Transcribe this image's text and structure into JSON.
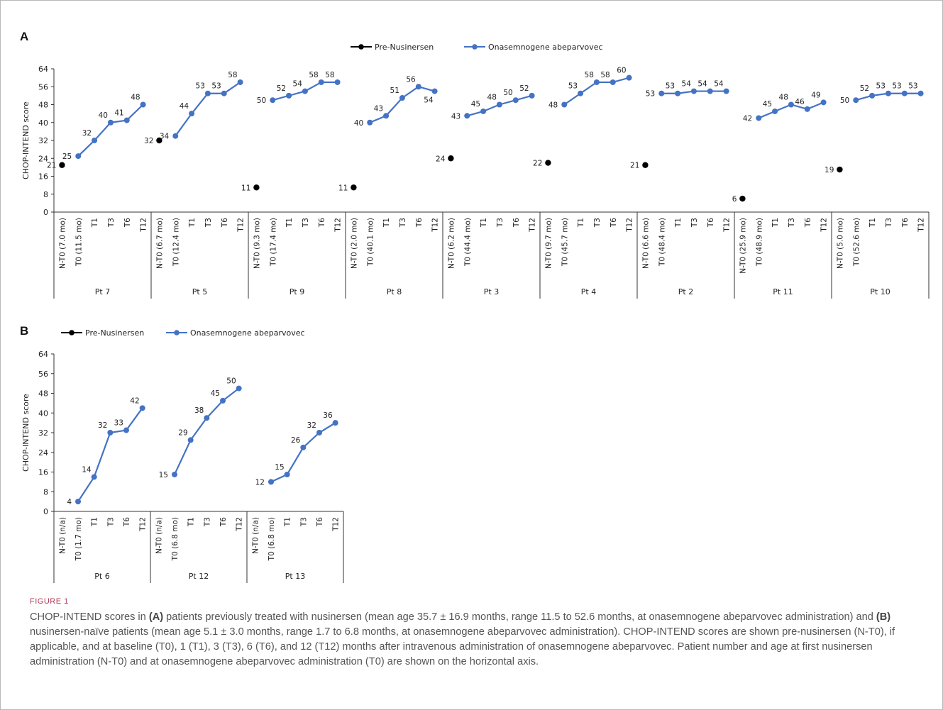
{
  "figure": {
    "label": "FIGURE 1",
    "caption_parts": [
      {
        "t": "CHOP-INTEND scores in ",
        "b": false
      },
      {
        "t": "(A)",
        "b": true
      },
      {
        "t": " patients previously treated with nusinersen (mean age 35.7 ± 16.9 months, range 11.5 to 52.6 months, at onasemnogene abeparvovec administration) and ",
        "b": false
      },
      {
        "t": "(B)",
        "b": true
      },
      {
        "t": " nusinersen-naïve patients (mean age 5.1 ± 3.0 months, range 1.7 to 6.8 months, at onasemnogene abeparvovec administration). CHOP-INTEND scores are shown pre-nusinersen (N-T0), if applicable, and at baseline (T0), 1 (T1), 3 (T3), 6 (T6), and 12 (T12) months after intravenous administration of onasemnogene abeparvovec. Patient number and age at first nusinersen administration (N-T0) and at onasemnogene abeparvovec administration (T0) are shown on the horizontal axis.",
        "b": false
      }
    ]
  },
  "colors": {
    "pre": "#000000",
    "post": "#4472c4",
    "axis": "#333333"
  },
  "chart_data": [
    {
      "panel": "A",
      "type": "line",
      "ylabel": "CHOP-INTEND score",
      "ylim": [
        0,
        64
      ],
      "yticks": [
        0,
        8,
        16,
        24,
        32,
        40,
        48,
        56,
        64
      ],
      "legend": {
        "pre": "Pre-Nusinersen",
        "post": "Onasemnogene abeparvovec",
        "position": "top-center"
      },
      "groups": [
        {
          "name": "Pt 7",
          "labels": [
            "N-T0 (7.0 mo)",
            "T0 (11.5 mo)",
            "T1",
            "T3",
            "T6",
            "T12"
          ],
          "pre": 21,
          "post": [
            25,
            32,
            40,
            41,
            48
          ]
        },
        {
          "name": "Pt 5",
          "labels": [
            "N-T0 (6.7 mo)",
            "T0 (12.4 mo)",
            "T1",
            "T3",
            "T6",
            "T12"
          ],
          "pre": 32,
          "post": [
            34,
            44,
            53,
            53,
            58
          ]
        },
        {
          "name": "Pt 9",
          "labels": [
            "N-T0 (9.3 mo)",
            "T0 (17.4 mo)",
            "T1",
            "T3",
            "T6",
            "T12"
          ],
          "pre": 11,
          "post": [
            50,
            52,
            54,
            58,
            58
          ]
        },
        {
          "name": "Pt 8",
          "labels": [
            "N-T0 (2.0 mo)",
            "T0 (40.1 mo)",
            "T1",
            "T3",
            "T6",
            "T12"
          ],
          "pre": 11,
          "post": [
            40,
            43,
            51,
            56,
            54
          ]
        },
        {
          "name": "Pt 3",
          "labels": [
            "N-T0 (6.2 mo)",
            "T0 (44.4 mo)",
            "T1",
            "T3",
            "T6",
            "T12"
          ],
          "pre": 24,
          "post": [
            43,
            45,
            48,
            50,
            52
          ]
        },
        {
          "name": "Pt 4",
          "labels": [
            "N-T0 (9.7 mo)",
            "T0 (45.7 mo)",
            "T1",
            "T3",
            "T6",
            "T12"
          ],
          "pre": 22,
          "post": [
            48,
            53,
            58,
            58,
            60
          ]
        },
        {
          "name": "Pt 2",
          "labels": [
            "N-T0 (6.6 mo)",
            "T0 (48.4 mo)",
            "T1",
            "T3",
            "T6",
            "T12"
          ],
          "pre": 21,
          "post": [
            53,
            53,
            54,
            54,
            54
          ]
        },
        {
          "name": "Pt 11",
          "labels": [
            "N-T0 (25.9 mo)",
            "T0 (48.9 mo)",
            "T1",
            "T3",
            "T6",
            "T12"
          ],
          "pre": 6,
          "post": [
            42,
            45,
            48,
            46,
            49
          ]
        },
        {
          "name": "Pt 10",
          "labels": [
            "N-T0 (5.0 mo)",
            "T0 (52.6 mo)",
            "T1",
            "T3",
            "T6",
            "T12"
          ],
          "pre": 19,
          "post": [
            50,
            52,
            53,
            53,
            53
          ]
        }
      ]
    },
    {
      "panel": "B",
      "type": "line",
      "ylabel": "CHOP-INTEND score",
      "ylim": [
        0,
        64
      ],
      "yticks": [
        0,
        8,
        16,
        24,
        32,
        40,
        48,
        56,
        64
      ],
      "legend": {
        "pre": "Pre-Nusinersen",
        "post": "Onasemnogene abeparvovec",
        "position": "top-left"
      },
      "groups": [
        {
          "name": "Pt 6",
          "labels": [
            "N-T0 (n/a)",
            "T0 (1.7 mo)",
            "T1",
            "T3",
            "T6",
            "T12"
          ],
          "pre": null,
          "post": [
            4,
            14,
            32,
            33,
            42
          ]
        },
        {
          "name": "Pt 12",
          "labels": [
            "N-T0 (n/a)",
            "T0 (6.8 mo)",
            "T1",
            "T3",
            "T6",
            "T12"
          ],
          "pre": null,
          "post": [
            15,
            29,
            38,
            45,
            50
          ]
        },
        {
          "name": "Pt 13",
          "labels": [
            "N-T0 (n/a)",
            "T0 (6.8 mo)",
            "T1",
            "T3",
            "T6",
            "T12"
          ],
          "pre": null,
          "post": [
            12,
            15,
            26,
            32,
            36
          ]
        }
      ]
    }
  ]
}
